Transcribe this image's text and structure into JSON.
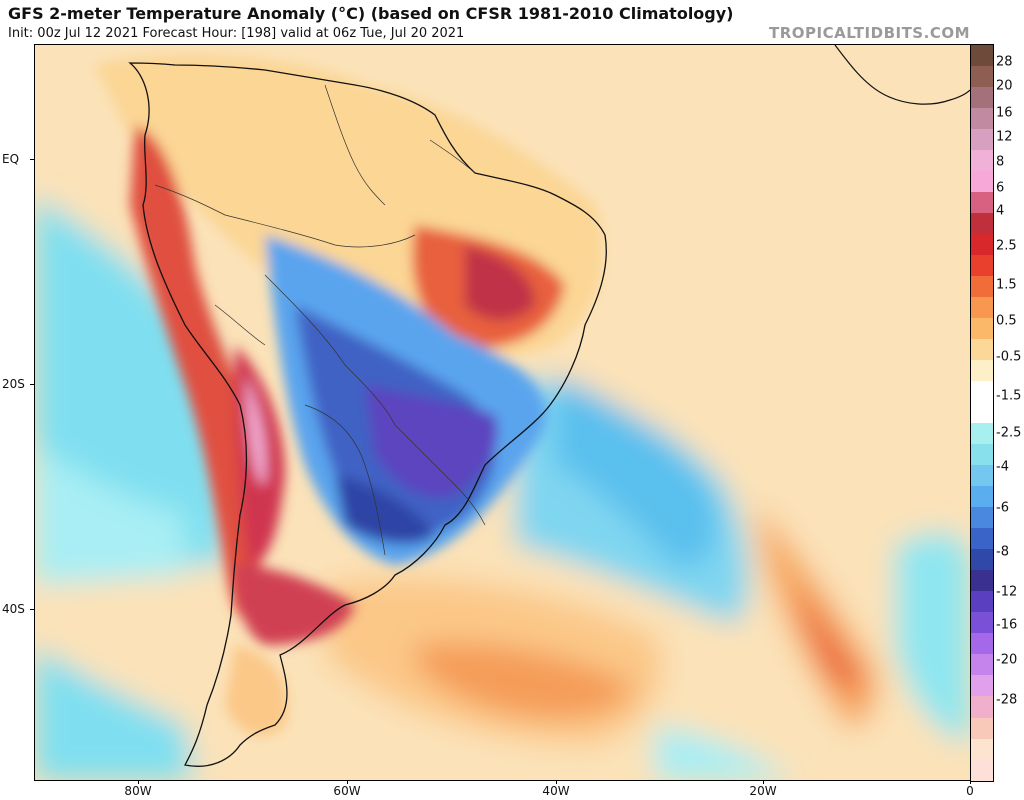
{
  "header": {
    "title": "GFS 2-meter Temperature Anomaly (°C) (based on CFSR 1981-2010 Climatology)",
    "subtitle": "Init: 00z Jul 12 2021   Forecast Hour: [198]   valid at 06z Tue, Jul 20 2021",
    "credit": "TROPICALTIDBITS.COM"
  },
  "axes": {
    "lat_labels": [
      "EQ",
      "20S",
      "40S"
    ],
    "lon_labels": [
      "80W",
      "60W",
      "40W",
      "20W",
      "0"
    ]
  },
  "colorbar": {
    "labels": [
      "28",
      "20",
      "16",
      "12",
      "8",
      "6",
      "4",
      "2.5",
      "1.5",
      "0.5",
      "-0.5",
      "-1.5",
      "-2.5",
      "-4",
      "-6",
      "-8",
      "-12",
      "-16",
      "-20",
      "-28"
    ],
    "colors": [
      "#6e4a3a",
      "#8e5e52",
      "#a4707a",
      "#c28aa0",
      "#d8a0c0",
      "#f0b0d8",
      "#f8a8d8",
      "#d86080",
      "#c0303c",
      "#d8282c",
      "#e8402c",
      "#f06c38",
      "#f89850",
      "#fbb868",
      "#fbd898",
      "#fdf0c8",
      "#ffffff",
      "#ffffff",
      "#a8f0f0",
      "#88e0ec",
      "#74c8f0",
      "#5aaef0",
      "#4a88e0",
      "#3a64c8",
      "#3048a8",
      "#3a3090",
      "#5a40c0",
      "#7a50d8",
      "#a468e8",
      "#c484ec",
      "#e0a0ec",
      "#f0b0cc",
      "#f8c8b8",
      "#fce4d0",
      "#ffe0d8"
    ]
  }
}
